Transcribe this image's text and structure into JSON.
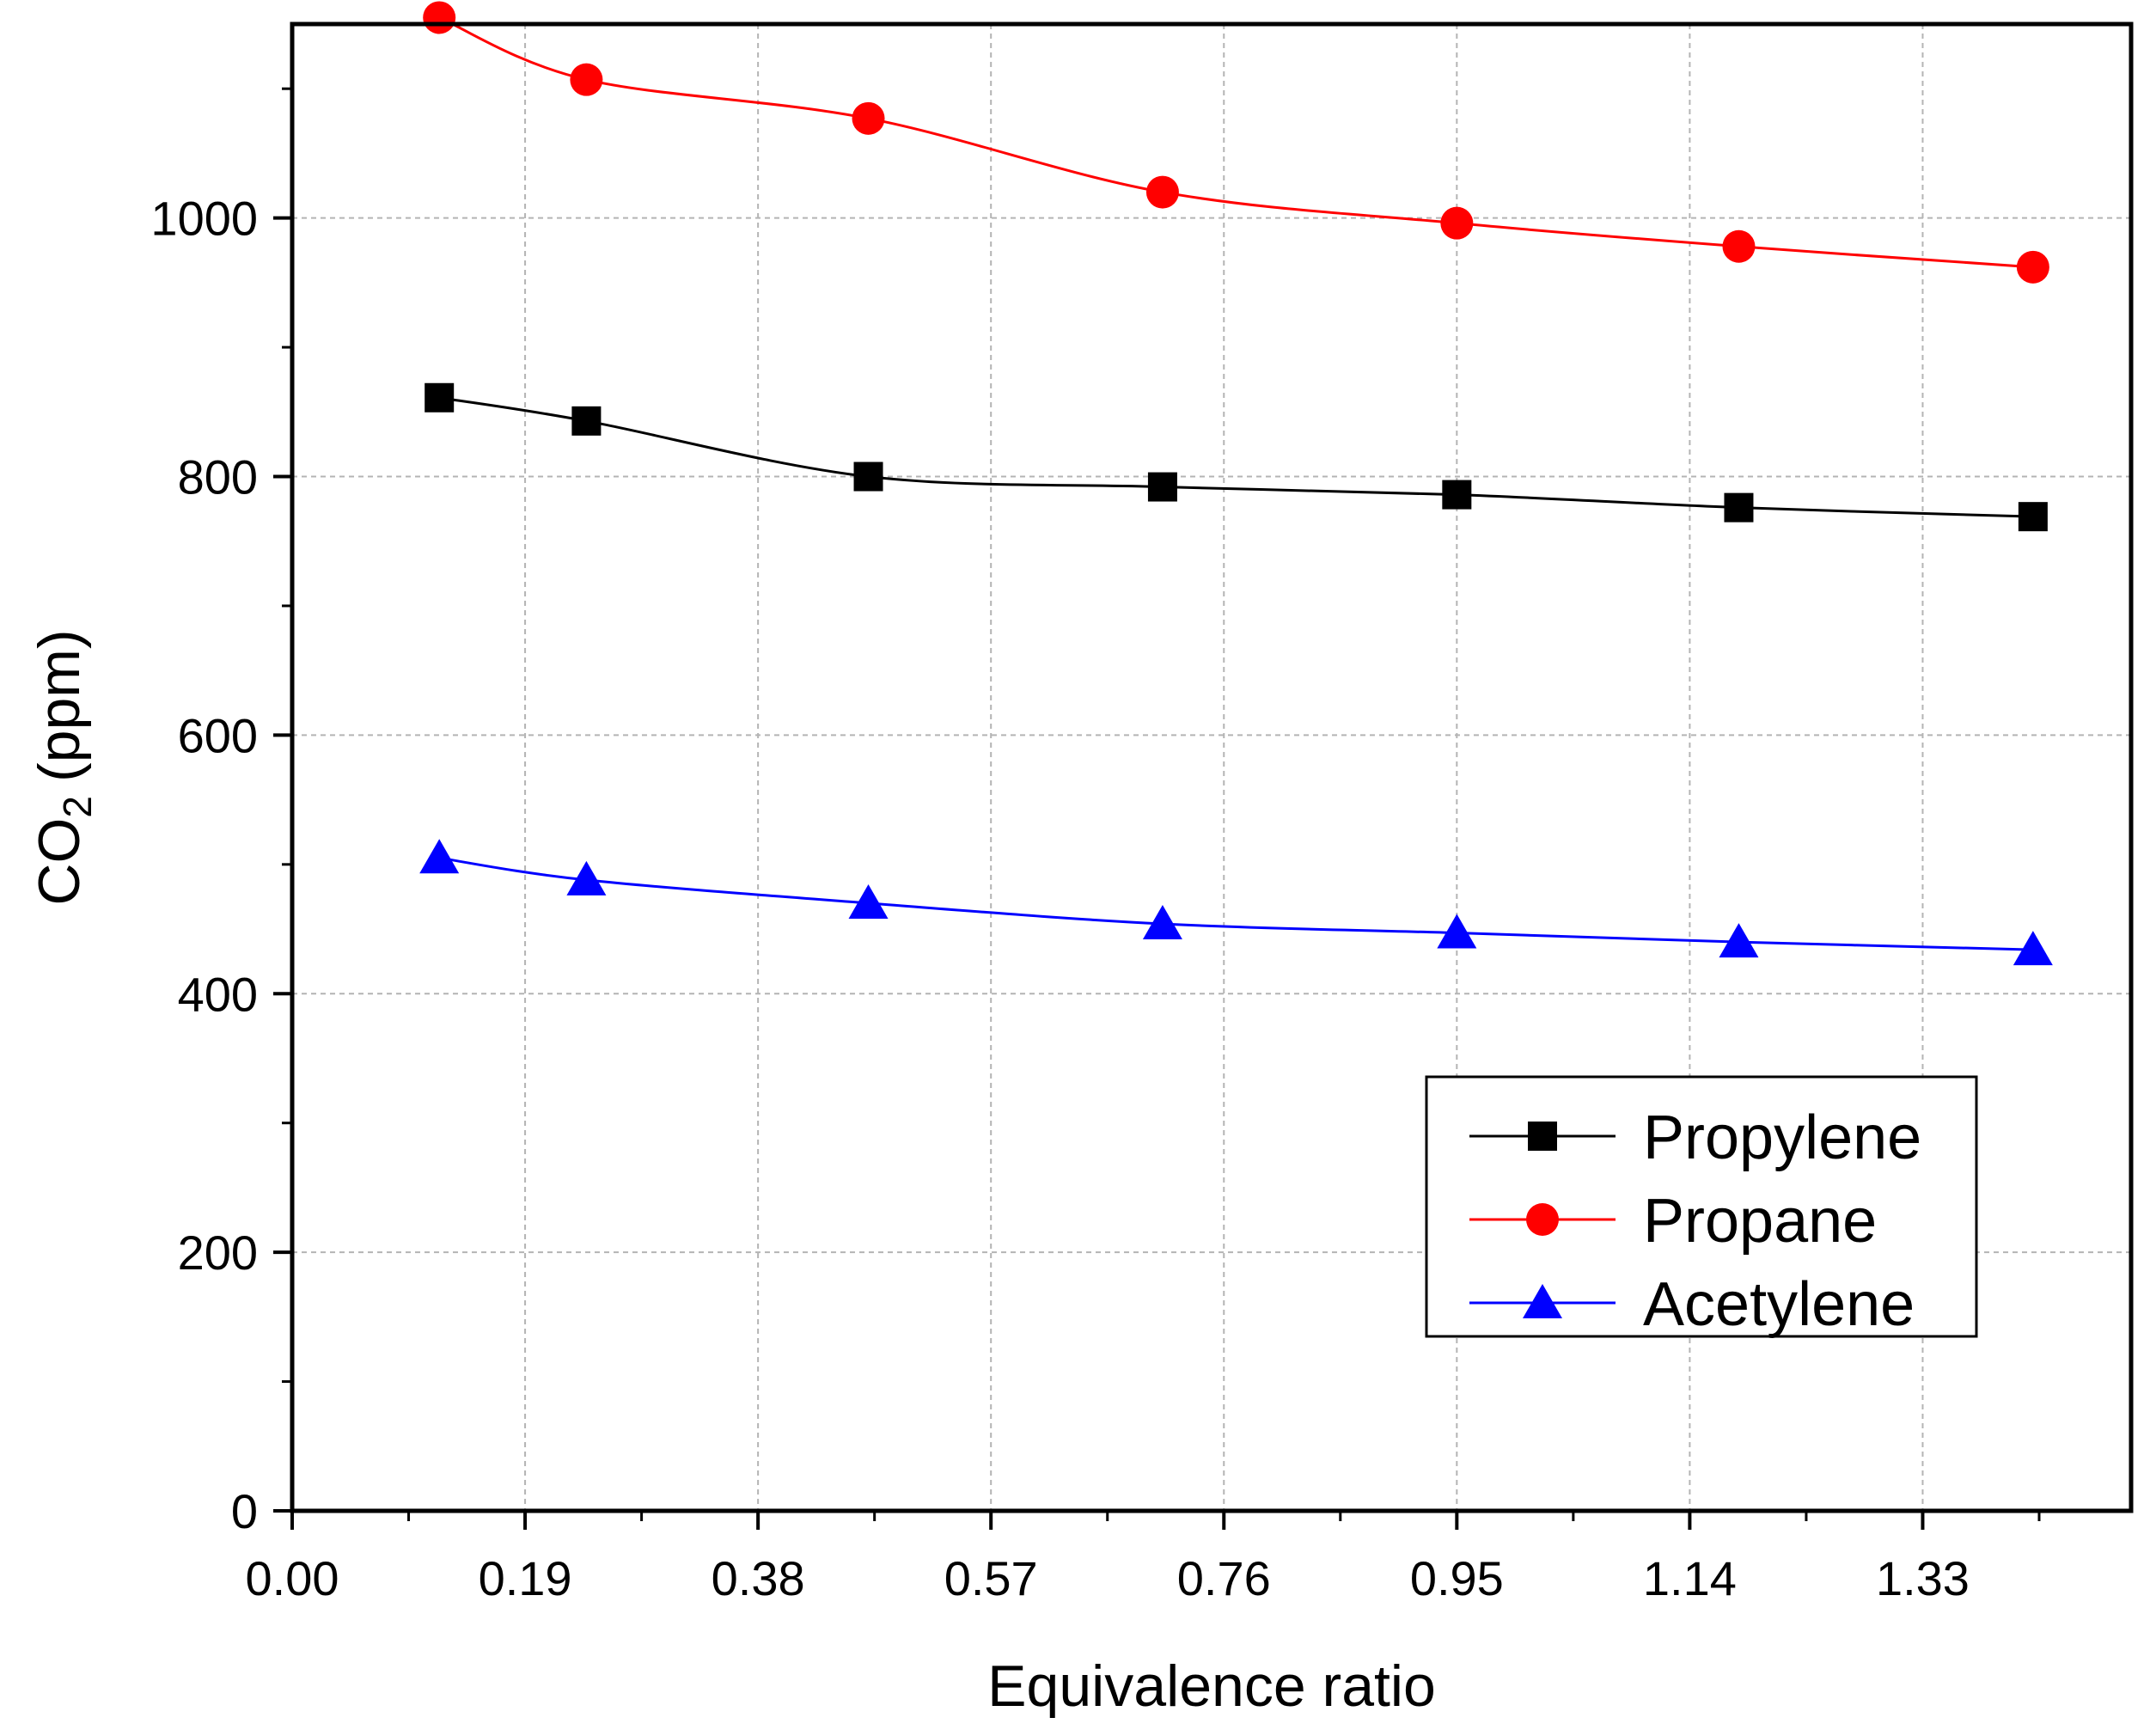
{
  "chart_data": {
    "type": "line",
    "title": "",
    "xlabel": "Equivalence ratio",
    "ylabel": {
      "main": "CO",
      "sub": "2",
      "unit": "(ppm)"
    },
    "xlim": [
      0.0,
      1.5
    ],
    "ylim": [
      0,
      1150
    ],
    "x_ticks": [
      "0.00",
      "0.19",
      "0.38",
      "0.57",
      "0.76",
      "0.95",
      "1.14",
      "1.33"
    ],
    "x_tick_values": [
      0.0,
      0.19,
      0.38,
      0.57,
      0.76,
      0.95,
      1.14,
      1.33
    ],
    "y_ticks": [
      "0",
      "200",
      "400",
      "600",
      "800",
      "1000"
    ],
    "y_tick_values": [
      0,
      200,
      400,
      600,
      800,
      1000
    ],
    "grid": true,
    "legend_position": "lower-right",
    "x": [
      0.12,
      0.24,
      0.47,
      0.71,
      0.95,
      1.18,
      1.42
    ],
    "series": [
      {
        "name": "Propylene",
        "color": "#000000",
        "marker": "square",
        "values": [
          861,
          843,
          800,
          792,
          786,
          776,
          769
        ]
      },
      {
        "name": "Propane",
        "color": "#ff0000",
        "marker": "circle",
        "values": [
          1155,
          1107,
          1077,
          1020,
          996,
          978,
          962
        ]
      },
      {
        "name": "Acetylene",
        "color": "#0000ff",
        "marker": "triangle",
        "values": [
          505,
          488,
          470,
          454,
          447,
          440,
          434
        ]
      }
    ]
  }
}
